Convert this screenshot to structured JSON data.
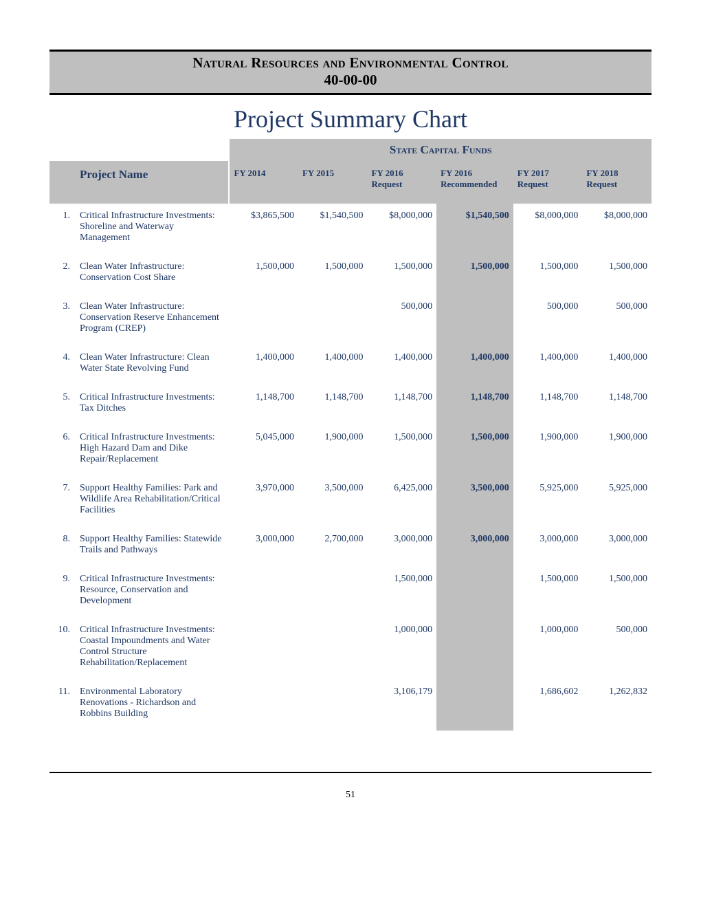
{
  "header": {
    "title": "Natural Resources and Environmental Control",
    "code": "40-00-00"
  },
  "page_title": "Project Summary Chart",
  "group_header": "State Capital Funds",
  "columns": {
    "name": "Project Name",
    "fy2014": "FY 2014",
    "fy2015": "FY 2015",
    "fy2016req": "FY 2016",
    "fy2016req_sub": "Request",
    "fy2016rec": "FY 2016",
    "fy2016rec_sub": "Recommended",
    "fy2017req": "FY 2017",
    "fy2017req_sub": "Request",
    "fy2018req": "FY 2018",
    "fy2018req_sub": "Request"
  },
  "rows": [
    {
      "n": "1.",
      "name": "Critical Infrastructure Investments: Shoreline and Waterway Management",
      "fy2014": "$3,865,500",
      "fy2015": "$1,540,500",
      "fy2016req": "$8,000,000",
      "fy2016rec": "$1,540,500",
      "fy2017req": "$8,000,000",
      "fy2018req": "$8,000,000"
    },
    {
      "n": "2.",
      "name": "Clean Water Infrastructure: Conservation Cost Share",
      "fy2014": "1,500,000",
      "fy2015": "1,500,000",
      "fy2016req": "1,500,000",
      "fy2016rec": "1,500,000",
      "fy2017req": "1,500,000",
      "fy2018req": "1,500,000"
    },
    {
      "n": "3.",
      "name": "Clean Water Infrastructure: Conservation Reserve Enhancement Program (CREP)",
      "fy2014": "",
      "fy2015": "",
      "fy2016req": "500,000",
      "fy2016rec": "",
      "fy2017req": "500,000",
      "fy2018req": "500,000"
    },
    {
      "n": "4.",
      "name": "Clean Water Infrastructure: Clean Water State Revolving Fund",
      "fy2014": "1,400,000",
      "fy2015": "1,400,000",
      "fy2016req": "1,400,000",
      "fy2016rec": "1,400,000",
      "fy2017req": "1,400,000",
      "fy2018req": "1,400,000"
    },
    {
      "n": "5.",
      "name": "Critical Infrastructure Investments: Tax Ditches",
      "fy2014": "1,148,700",
      "fy2015": "1,148,700",
      "fy2016req": "1,148,700",
      "fy2016rec": "1,148,700",
      "fy2017req": "1,148,700",
      "fy2018req": "1,148,700"
    },
    {
      "n": "6.",
      "name": "Critical Infrastructure Investments: High Hazard Dam and Dike Repair/Replacement",
      "fy2014": "5,045,000",
      "fy2015": "1,900,000",
      "fy2016req": "1,500,000",
      "fy2016rec": "1,500,000",
      "fy2017req": "1,900,000",
      "fy2018req": "1,900,000"
    },
    {
      "n": "7.",
      "name": "Support Healthy Families: Park and Wildlife Area Rehabilitation/Critical Facilities",
      "fy2014": "3,970,000",
      "fy2015": "3,500,000",
      "fy2016req": "6,425,000",
      "fy2016rec": "3,500,000",
      "fy2017req": "5,925,000",
      "fy2018req": "5,925,000"
    },
    {
      "n": "8.",
      "name": "Support Healthy Families: Statewide Trails and Pathways",
      "fy2014": "3,000,000",
      "fy2015": "2,700,000",
      "fy2016req": "3,000,000",
      "fy2016rec": "3,000,000",
      "fy2017req": "3,000,000",
      "fy2018req": "3,000,000"
    },
    {
      "n": "9.",
      "name": "Critical Infrastructure Investments: Resource, Conservation and Development",
      "fy2014": "",
      "fy2015": "",
      "fy2016req": "1,500,000",
      "fy2016rec": "",
      "fy2017req": "1,500,000",
      "fy2018req": "1,500,000"
    },
    {
      "n": "10.",
      "name": "Critical Infrastructure Investments: Coastal Impoundments and Water Control Structure Rehabilitation/Replacement",
      "fy2014": "",
      "fy2015": "",
      "fy2016req": "1,000,000",
      "fy2016rec": "",
      "fy2017req": "1,000,000",
      "fy2018req": "500,000"
    },
    {
      "n": "11.",
      "name": "Environmental Laboratory Renovations - Richardson and Robbins Building",
      "fy2014": "",
      "fy2015": "",
      "fy2016req": "3,106,179",
      "fy2016rec": "",
      "fy2017req": "1,686,602",
      "fy2018req": "1,262,832"
    }
  ],
  "page_number": "51",
  "colors": {
    "text_navy": "#1f3864",
    "header_gray": "#bfbfbf",
    "black": "#000000",
    "white": "#ffffff"
  }
}
